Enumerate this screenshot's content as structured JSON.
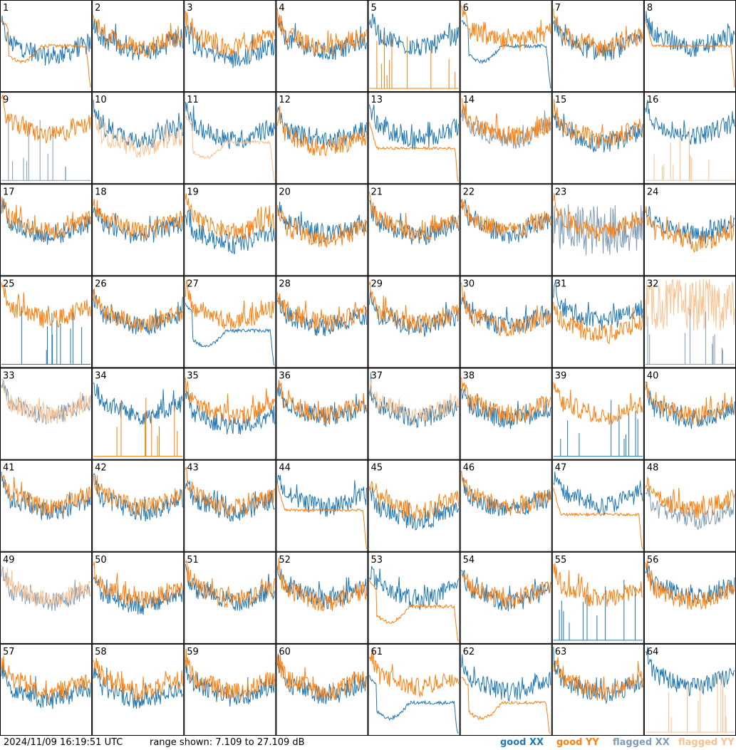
{
  "footer": {
    "timestamp": "2024/11/09 16:19:51 UTC",
    "range_text": "range shown: 7.109 to 27.109 dB",
    "legend": {
      "good_xx": "good XX",
      "good_yy": "good YY",
      "flagged_xx": "flagged XX",
      "flagged_yy": "flagged YY"
    }
  },
  "colors": {
    "good_xx": "#1f77b4",
    "good_yy": "#ff7f0e",
    "flagged_xx": "#7f9bb6",
    "flagged_yy": "#fcc08c"
  },
  "chart_data": {
    "type": "line",
    "grid_rows": 8,
    "grid_cols": 8,
    "y_range_db": [
      7.109,
      27.109
    ],
    "panels": [
      {
        "label": "1",
        "xx": {
          "shape": "normal",
          "level": 0.45,
          "flag": false
        },
        "yy": {
          "shape": "dip_drop",
          "level": 0.5,
          "flag": false
        }
      },
      {
        "label": "2",
        "xx": {
          "shape": "normal",
          "level": 0.5,
          "flag": false
        },
        "yy": {
          "shape": "normal",
          "level": 0.55,
          "flag": false
        }
      },
      {
        "label": "3",
        "xx": {
          "shape": "normal",
          "level": 0.42,
          "flag": false
        },
        "yy": {
          "shape": "normal",
          "level": 0.55,
          "flag": false
        }
      },
      {
        "label": "4",
        "xx": {
          "shape": "normal",
          "level": 0.5,
          "flag": false
        },
        "yy": {
          "shape": "normal",
          "level": 0.55,
          "flag": false
        }
      },
      {
        "label": "5",
        "xx": {
          "shape": "normal",
          "level": 0.55,
          "flag": false
        },
        "yy": {
          "shape": "spikes",
          "level": 0.0,
          "flag": false
        }
      },
      {
        "label": "6",
        "xx": {
          "shape": "dip_drop",
          "level": 0.5,
          "flag": false
        },
        "yy": {
          "shape": "normal",
          "level": 0.6,
          "flag": false
        }
      },
      {
        "label": "7",
        "xx": {
          "shape": "normal",
          "level": 0.5,
          "flag": false
        },
        "yy": {
          "shape": "normal",
          "level": 0.55,
          "flag": false
        }
      },
      {
        "label": "8",
        "xx": {
          "shape": "normal",
          "level": 0.55,
          "flag": false
        },
        "yy": {
          "shape": "flat_drop",
          "level": 0.5,
          "flag": false
        }
      },
      {
        "label": "9",
        "xx": {
          "shape": "spikes",
          "level": 0.0,
          "flag": true
        },
        "yy": {
          "shape": "normal",
          "level": 0.6,
          "flag": false
        }
      },
      {
        "label": "10",
        "xx": {
          "shape": "normal",
          "level": 0.55,
          "flag": false
        },
        "yy": {
          "shape": "normal",
          "level": 0.45,
          "flag": true
        }
      },
      {
        "label": "11",
        "xx": {
          "shape": "normal",
          "level": 0.55,
          "flag": false
        },
        "yy": {
          "shape": "dip_drop",
          "level": 0.45,
          "flag": true
        }
      },
      {
        "label": "12",
        "xx": {
          "shape": "normal",
          "level": 0.52,
          "flag": false
        },
        "yy": {
          "shape": "normal",
          "level": 0.45,
          "flag": false
        }
      },
      {
        "label": "13",
        "xx": {
          "shape": "normal",
          "level": 0.55,
          "flag": false
        },
        "yy": {
          "shape": "flat_drop",
          "level": 0.38,
          "flag": false
        }
      },
      {
        "label": "14",
        "xx": {
          "shape": "normal",
          "level": 0.55,
          "flag": true
        },
        "yy": {
          "shape": "normal",
          "level": 0.58,
          "flag": false
        }
      },
      {
        "label": "15",
        "xx": {
          "shape": "normal",
          "level": 0.5,
          "flag": false
        },
        "yy": {
          "shape": "normal",
          "level": 0.55,
          "flag": false
        }
      },
      {
        "label": "16",
        "xx": {
          "shape": "normal",
          "level": 0.6,
          "flag": false
        },
        "yy": {
          "shape": "spikes",
          "level": 0.0,
          "flag": true
        }
      },
      {
        "label": "17",
        "xx": {
          "shape": "normal",
          "level": 0.5,
          "flag": false
        },
        "yy": {
          "shape": "normal",
          "level": 0.55,
          "flag": false
        }
      },
      {
        "label": "18",
        "xx": {
          "shape": "normal",
          "level": 0.5,
          "flag": false
        },
        "yy": {
          "shape": "normal",
          "level": 0.55,
          "flag": false
        }
      },
      {
        "label": "19",
        "xx": {
          "shape": "normal",
          "level": 0.4,
          "flag": false
        },
        "yy": {
          "shape": "normal",
          "level": 0.55,
          "flag": false
        }
      },
      {
        "label": "20",
        "xx": {
          "shape": "normal",
          "level": 0.52,
          "flag": false
        },
        "yy": {
          "shape": "normal",
          "level": 0.45,
          "flag": false
        }
      },
      {
        "label": "21",
        "xx": {
          "shape": "normal",
          "level": 0.5,
          "flag": false
        },
        "yy": {
          "shape": "normal",
          "level": 0.55,
          "flag": false
        }
      },
      {
        "label": "22",
        "xx": {
          "shape": "normal",
          "level": 0.52,
          "flag": false
        },
        "yy": {
          "shape": "normal",
          "level": 0.56,
          "flag": false
        }
      },
      {
        "label": "23",
        "xx": {
          "shape": "noisy",
          "level": 0.2,
          "flag": true
        },
        "yy": {
          "shape": "normal",
          "level": 0.55,
          "flag": false
        }
      },
      {
        "label": "24",
        "xx": {
          "shape": "normal",
          "level": 0.5,
          "flag": false
        },
        "yy": {
          "shape": "normal",
          "level": 0.42,
          "flag": false
        }
      },
      {
        "label": "25",
        "xx": {
          "shape": "spikes",
          "level": 0.0,
          "flag": false
        },
        "yy": {
          "shape": "normal",
          "level": 0.6,
          "flag": false
        }
      },
      {
        "label": "26",
        "xx": {
          "shape": "normal",
          "level": 0.52,
          "flag": false
        },
        "yy": {
          "shape": "normal",
          "level": 0.55,
          "flag": false
        }
      },
      {
        "label": "27",
        "xx": {
          "shape": "dip_drop",
          "level": 0.4,
          "flag": false
        },
        "yy": {
          "shape": "normal",
          "level": 0.58,
          "flag": false
        }
      },
      {
        "label": "28",
        "xx": {
          "shape": "normal",
          "level": 0.5,
          "flag": false
        },
        "yy": {
          "shape": "normal",
          "level": 0.55,
          "flag": false
        }
      },
      {
        "label": "29",
        "xx": {
          "shape": "normal",
          "level": 0.5,
          "flag": false
        },
        "yy": {
          "shape": "normal",
          "level": 0.55,
          "flag": false
        }
      },
      {
        "label": "30",
        "xx": {
          "shape": "normal",
          "level": 0.52,
          "flag": false
        },
        "yy": {
          "shape": "normal",
          "level": 0.5,
          "flag": false
        }
      },
      {
        "label": "31",
        "xx": {
          "shape": "normal",
          "level": 0.58,
          "flag": false
        },
        "yy": {
          "shape": "normal",
          "level": 0.42,
          "flag": false
        }
      },
      {
        "label": "32",
        "xx": {
          "shape": "spikes",
          "level": 0.0,
          "flag": true
        },
        "yy": {
          "shape": "noisy",
          "level": 0.4,
          "flag": true
        }
      },
      {
        "label": "33",
        "xx": {
          "shape": "normal",
          "level": 0.55,
          "flag": true
        },
        "yy": {
          "shape": "normal",
          "level": 0.55,
          "flag": true
        }
      },
      {
        "label": "34",
        "xx": {
          "shape": "normal",
          "level": 0.55,
          "flag": false
        },
        "yy": {
          "shape": "spikes",
          "level": 0.0,
          "flag": false
        }
      },
      {
        "label": "35",
        "xx": {
          "shape": "normal",
          "level": 0.42,
          "flag": false
        },
        "yy": {
          "shape": "normal",
          "level": 0.55,
          "flag": false
        }
      },
      {
        "label": "36",
        "xx": {
          "shape": "normal",
          "level": 0.52,
          "flag": false
        },
        "yy": {
          "shape": "normal",
          "level": 0.55,
          "flag": false
        }
      },
      {
        "label": "37",
        "xx": {
          "shape": "normal",
          "level": 0.52,
          "flag": false
        },
        "yy": {
          "shape": "normal",
          "level": 0.55,
          "flag": true
        }
      },
      {
        "label": "38",
        "xx": {
          "shape": "normal",
          "level": 0.5,
          "flag": false
        },
        "yy": {
          "shape": "normal",
          "level": 0.55,
          "flag": false
        }
      },
      {
        "label": "39",
        "xx": {
          "shape": "spikes",
          "level": 0.0,
          "flag": false
        },
        "yy": {
          "shape": "normal",
          "level": 0.55,
          "flag": false
        }
      },
      {
        "label": "40",
        "xx": {
          "shape": "normal",
          "level": 0.5,
          "flag": false
        },
        "yy": {
          "shape": "normal",
          "level": 0.55,
          "flag": false
        }
      },
      {
        "label": "41",
        "xx": {
          "shape": "normal",
          "level": 0.5,
          "flag": false
        },
        "yy": {
          "shape": "normal",
          "level": 0.55,
          "flag": false
        }
      },
      {
        "label": "42",
        "xx": {
          "shape": "normal",
          "level": 0.5,
          "flag": false
        },
        "yy": {
          "shape": "normal",
          "level": 0.55,
          "flag": false
        }
      },
      {
        "label": "43",
        "xx": {
          "shape": "normal",
          "level": 0.5,
          "flag": false
        },
        "yy": {
          "shape": "normal",
          "level": 0.55,
          "flag": false
        }
      },
      {
        "label": "44",
        "xx": {
          "shape": "normal",
          "level": 0.55,
          "flag": false
        },
        "yy": {
          "shape": "flat_drop",
          "level": 0.45,
          "flag": false
        }
      },
      {
        "label": "45",
        "xx": {
          "shape": "normal",
          "level": 0.4,
          "flag": false
        },
        "yy": {
          "shape": "normal",
          "level": 0.5,
          "flag": false
        }
      },
      {
        "label": "46",
        "xx": {
          "shape": "normal",
          "level": 0.52,
          "flag": false
        },
        "yy": {
          "shape": "normal",
          "level": 0.56,
          "flag": false
        }
      },
      {
        "label": "47",
        "xx": {
          "shape": "normal",
          "level": 0.58,
          "flag": false
        },
        "yy": {
          "shape": "flat_drop",
          "level": 0.4,
          "flag": false
        }
      },
      {
        "label": "48",
        "xx": {
          "shape": "normal",
          "level": 0.4,
          "flag": true
        },
        "yy": {
          "shape": "normal",
          "level": 0.52,
          "flag": false
        }
      },
      {
        "label": "49",
        "xx": {
          "shape": "normal",
          "level": 0.52,
          "flag": true
        },
        "yy": {
          "shape": "normal",
          "level": 0.55,
          "flag": true
        }
      },
      {
        "label": "50",
        "xx": {
          "shape": "normal",
          "level": 0.48,
          "flag": false
        },
        "yy": {
          "shape": "normal",
          "level": 0.55,
          "flag": false
        }
      },
      {
        "label": "51",
        "xx": {
          "shape": "normal",
          "level": 0.52,
          "flag": false
        },
        "yy": {
          "shape": "normal",
          "level": 0.55,
          "flag": false
        }
      },
      {
        "label": "52",
        "xx": {
          "shape": "normal",
          "level": 0.55,
          "flag": false
        },
        "yy": {
          "shape": "normal",
          "level": 0.52,
          "flag": false
        }
      },
      {
        "label": "53",
        "xx": {
          "shape": "normal",
          "level": 0.55,
          "flag": false
        },
        "yy": {
          "shape": "dip_drop",
          "level": 0.4,
          "flag": false
        }
      },
      {
        "label": "54",
        "xx": {
          "shape": "normal",
          "level": 0.52,
          "flag": false
        },
        "yy": {
          "shape": "normal",
          "level": 0.55,
          "flag": false
        }
      },
      {
        "label": "55",
        "xx": {
          "shape": "spikes",
          "level": 0.0,
          "flag": false
        },
        "yy": {
          "shape": "normal",
          "level": 0.55,
          "flag": false
        }
      },
      {
        "label": "56",
        "xx": {
          "shape": "normal",
          "level": 0.58,
          "flag": false
        },
        "yy": {
          "shape": "normal",
          "level": 0.52,
          "flag": false
        }
      },
      {
        "label": "57",
        "xx": {
          "shape": "normal",
          "level": 0.45,
          "flag": false
        },
        "yy": {
          "shape": "normal",
          "level": 0.55,
          "flag": false
        }
      },
      {
        "label": "58",
        "xx": {
          "shape": "normal",
          "level": 0.45,
          "flag": false
        },
        "yy": {
          "shape": "normal",
          "level": 0.55,
          "flag": false
        }
      },
      {
        "label": "59",
        "xx": {
          "shape": "normal",
          "level": 0.48,
          "flag": false
        },
        "yy": {
          "shape": "normal",
          "level": 0.55,
          "flag": false
        }
      },
      {
        "label": "60",
        "xx": {
          "shape": "normal",
          "level": 0.5,
          "flag": false
        },
        "yy": {
          "shape": "normal",
          "level": 0.55,
          "flag": false
        }
      },
      {
        "label": "61",
        "xx": {
          "shape": "dip_drop",
          "level": 0.35,
          "flag": false
        },
        "yy": {
          "shape": "normal",
          "level": 0.6,
          "flag": false
        }
      },
      {
        "label": "62",
        "xx": {
          "shape": "normal",
          "level": 0.55,
          "flag": false
        },
        "yy": {
          "shape": "dip_drop",
          "level": 0.35,
          "flag": false
        }
      },
      {
        "label": "63",
        "xx": {
          "shape": "normal",
          "level": 0.52,
          "flag": false
        },
        "yy": {
          "shape": "normal",
          "level": 0.55,
          "flag": false
        }
      },
      {
        "label": "64",
        "xx": {
          "shape": "normal",
          "level": 0.6,
          "flag": false
        },
        "yy": {
          "shape": "spikes",
          "level": 0.0,
          "flag": true
        }
      }
    ]
  }
}
